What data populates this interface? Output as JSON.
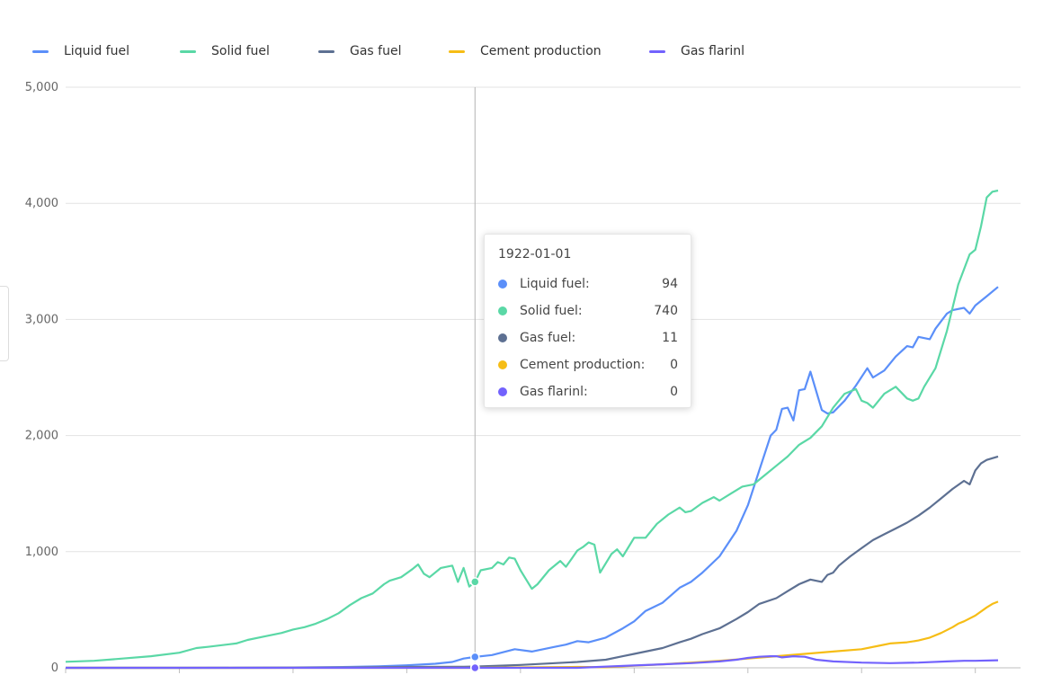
{
  "chart_data": {
    "type": "line",
    "title": "",
    "xlabel": "",
    "ylabel": "",
    "ylim": [
      0,
      5000
    ],
    "y_ticks": [
      0,
      1000,
      2000,
      3000,
      4000,
      5000
    ],
    "y_tick_labels": [
      "0",
      "1,000",
      "2,000",
      "3,000",
      "4,000",
      "5,000"
    ],
    "x_range": [
      1850,
      2014
    ],
    "grid": true,
    "legend_position": "top-left",
    "series": [
      {
        "name": "Liquid fuel",
        "color": "#5B8FF9",
        "points": [
          [
            1850,
            0
          ],
          [
            1870,
            0
          ],
          [
            1880,
            1
          ],
          [
            1890,
            3
          ],
          [
            1900,
            8
          ],
          [
            1905,
            12
          ],
          [
            1910,
            22
          ],
          [
            1915,
            35
          ],
          [
            1918,
            50
          ],
          [
            1920,
            80
          ],
          [
            1922,
            94
          ],
          [
            1925,
            110
          ],
          [
            1929,
            160
          ],
          [
            1932,
            140
          ],
          [
            1936,
            180
          ],
          [
            1938,
            200
          ],
          [
            1940,
            230
          ],
          [
            1942,
            220
          ],
          [
            1945,
            260
          ],
          [
            1948,
            340
          ],
          [
            1950,
            400
          ],
          [
            1952,
            490
          ],
          [
            1955,
            560
          ],
          [
            1958,
            690
          ],
          [
            1960,
            740
          ],
          [
            1962,
            820
          ],
          [
            1965,
            960
          ],
          [
            1968,
            1180
          ],
          [
            1970,
            1400
          ],
          [
            1972,
            1700
          ],
          [
            1974,
            2000
          ],
          [
            1975,
            2050
          ],
          [
            1976,
            2230
          ],
          [
            1977,
            2240
          ],
          [
            1978,
            2130
          ],
          [
            1979,
            2390
          ],
          [
            1980,
            2400
          ],
          [
            1981,
            2550
          ],
          [
            1983,
            2220
          ],
          [
            1984,
            2190
          ],
          [
            1985,
            2200
          ],
          [
            1987,
            2300
          ],
          [
            1989,
            2430
          ],
          [
            1991,
            2580
          ],
          [
            1992,
            2500
          ],
          [
            1994,
            2560
          ],
          [
            1996,
            2680
          ],
          [
            1998,
            2770
          ],
          [
            1999,
            2760
          ],
          [
            2000,
            2850
          ],
          [
            2002,
            2830
          ],
          [
            2003,
            2920
          ],
          [
            2005,
            3050
          ],
          [
            2006,
            3080
          ],
          [
            2008,
            3100
          ],
          [
            2009,
            3050
          ],
          [
            2010,
            3120
          ],
          [
            2012,
            3200
          ],
          [
            2014,
            3280
          ]
        ]
      },
      {
        "name": "Solid fuel",
        "color": "#5AD8A6",
        "points": [
          [
            1850,
            52
          ],
          [
            1855,
            60
          ],
          [
            1860,
            80
          ],
          [
            1865,
            100
          ],
          [
            1870,
            130
          ],
          [
            1873,
            170
          ],
          [
            1875,
            180
          ],
          [
            1880,
            210
          ],
          [
            1882,
            240
          ],
          [
            1885,
            270
          ],
          [
            1888,
            300
          ],
          [
            1890,
            330
          ],
          [
            1892,
            350
          ],
          [
            1894,
            380
          ],
          [
            1896,
            420
          ],
          [
            1898,
            470
          ],
          [
            1900,
            540
          ],
          [
            1902,
            600
          ],
          [
            1904,
            640
          ],
          [
            1906,
            720
          ],
          [
            1907,
            750
          ],
          [
            1909,
            780
          ],
          [
            1911,
            850
          ],
          [
            1912,
            890
          ],
          [
            1913,
            810
          ],
          [
            1914,
            780
          ],
          [
            1916,
            860
          ],
          [
            1918,
            880
          ],
          [
            1919,
            740
          ],
          [
            1920,
            860
          ],
          [
            1921,
            700
          ],
          [
            1922,
            740
          ],
          [
            1923,
            840
          ],
          [
            1925,
            860
          ],
          [
            1926,
            910
          ],
          [
            1927,
            890
          ],
          [
            1928,
            950
          ],
          [
            1929,
            940
          ],
          [
            1930,
            840
          ],
          [
            1931,
            760
          ],
          [
            1932,
            680
          ],
          [
            1933,
            720
          ],
          [
            1935,
            840
          ],
          [
            1937,
            920
          ],
          [
            1938,
            870
          ],
          [
            1939,
            940
          ],
          [
            1940,
            1010
          ],
          [
            1941,
            1040
          ],
          [
            1942,
            1080
          ],
          [
            1943,
            1060
          ],
          [
            1944,
            820
          ],
          [
            1946,
            980
          ],
          [
            1947,
            1020
          ],
          [
            1948,
            960
          ],
          [
            1950,
            1120
          ],
          [
            1952,
            1120
          ],
          [
            1954,
            1240
          ],
          [
            1956,
            1320
          ],
          [
            1958,
            1380
          ],
          [
            1959,
            1340
          ],
          [
            1960,
            1350
          ],
          [
            1962,
            1420
          ],
          [
            1964,
            1470
          ],
          [
            1965,
            1440
          ],
          [
            1967,
            1500
          ],
          [
            1969,
            1560
          ],
          [
            1971,
            1580
          ],
          [
            1973,
            1660
          ],
          [
            1975,
            1740
          ],
          [
            1977,
            1820
          ],
          [
            1979,
            1920
          ],
          [
            1981,
            1980
          ],
          [
            1983,
            2080
          ],
          [
            1985,
            2240
          ],
          [
            1987,
            2360
          ],
          [
            1989,
            2400
          ],
          [
            1990,
            2300
          ],
          [
            1991,
            2280
          ],
          [
            1992,
            2240
          ],
          [
            1994,
            2360
          ],
          [
            1996,
            2420
          ],
          [
            1998,
            2320
          ],
          [
            1999,
            2300
          ],
          [
            2000,
            2320
          ],
          [
            2001,
            2420
          ],
          [
            2003,
            2580
          ],
          [
            2005,
            2900
          ],
          [
            2007,
            3300
          ],
          [
            2009,
            3560
          ],
          [
            2010,
            3600
          ],
          [
            2011,
            3800
          ],
          [
            2012,
            4050
          ],
          [
            2013,
            4100
          ],
          [
            2014,
            4110
          ]
        ]
      },
      {
        "name": "Gas fuel",
        "color": "#5D7092",
        "points": [
          [
            1850,
            0
          ],
          [
            1880,
            0
          ],
          [
            1890,
            1
          ],
          [
            1900,
            3
          ],
          [
            1910,
            8
          ],
          [
            1920,
            9
          ],
          [
            1922,
            11
          ],
          [
            1930,
            25
          ],
          [
            1940,
            50
          ],
          [
            1945,
            70
          ],
          [
            1948,
            100
          ],
          [
            1950,
            120
          ],
          [
            1955,
            170
          ],
          [
            1958,
            220
          ],
          [
            1960,
            250
          ],
          [
            1962,
            290
          ],
          [
            1965,
            340
          ],
          [
            1968,
            420
          ],
          [
            1970,
            480
          ],
          [
            1972,
            550
          ],
          [
            1975,
            600
          ],
          [
            1977,
            660
          ],
          [
            1979,
            720
          ],
          [
            1981,
            760
          ],
          [
            1983,
            740
          ],
          [
            1984,
            800
          ],
          [
            1985,
            820
          ],
          [
            1986,
            880
          ],
          [
            1988,
            960
          ],
          [
            1990,
            1030
          ],
          [
            1992,
            1100
          ],
          [
            1994,
            1150
          ],
          [
            1996,
            1200
          ],
          [
            1998,
            1250
          ],
          [
            2000,
            1310
          ],
          [
            2002,
            1380
          ],
          [
            2004,
            1460
          ],
          [
            2006,
            1540
          ],
          [
            2008,
            1610
          ],
          [
            2009,
            1580
          ],
          [
            2010,
            1700
          ],
          [
            2011,
            1760
          ],
          [
            2012,
            1790
          ],
          [
            2014,
            1820
          ]
        ]
      },
      {
        "name": "Cement production",
        "color": "#F6BD16",
        "points": [
          [
            1850,
            0
          ],
          [
            1920,
            0
          ],
          [
            1922,
            0
          ],
          [
            1925,
            2
          ],
          [
            1930,
            4
          ],
          [
            1940,
            8
          ],
          [
            1945,
            5
          ],
          [
            1950,
            18
          ],
          [
            1955,
            30
          ],
          [
            1960,
            45
          ],
          [
            1965,
            60
          ],
          [
            1970,
            80
          ],
          [
            1975,
            100
          ],
          [
            1980,
            120
          ],
          [
            1985,
            140
          ],
          [
            1990,
            160
          ],
          [
            1993,
            190
          ],
          [
            1995,
            210
          ],
          [
            1998,
            220
          ],
          [
            2000,
            235
          ],
          [
            2002,
            260
          ],
          [
            2004,
            300
          ],
          [
            2006,
            350
          ],
          [
            2007,
            380
          ],
          [
            2008,
            400
          ],
          [
            2010,
            450
          ],
          [
            2012,
            520
          ],
          [
            2013,
            550
          ],
          [
            2014,
            570
          ]
        ]
      },
      {
        "name": "Gas flarinl",
        "color": "#7262FD",
        "points": [
          [
            1850,
            0
          ],
          [
            1920,
            0
          ],
          [
            1922,
            0
          ],
          [
            1930,
            0
          ],
          [
            1940,
            0
          ],
          [
            1950,
            20
          ],
          [
            1955,
            30
          ],
          [
            1960,
            40
          ],
          [
            1965,
            55
          ],
          [
            1968,
            70
          ],
          [
            1970,
            85
          ],
          [
            1972,
            95
          ],
          [
            1974,
            100
          ],
          [
            1975,
            100
          ],
          [
            1976,
            90
          ],
          [
            1978,
            100
          ],
          [
            1980,
            95
          ],
          [
            1982,
            70
          ],
          [
            1985,
            55
          ],
          [
            1990,
            45
          ],
          [
            1995,
            40
          ],
          [
            2000,
            45
          ],
          [
            2005,
            55
          ],
          [
            2008,
            60
          ],
          [
            2010,
            60
          ],
          [
            2014,
            65
          ]
        ]
      }
    ],
    "highlight": {
      "x": 1922,
      "label": "1922-01-01",
      "rows": [
        {
          "name": "Liquid fuel:",
          "value": "94",
          "color": "#5B8FF9"
        },
        {
          "name": "Solid fuel:",
          "value": "740",
          "color": "#5AD8A6"
        },
        {
          "name": "Gas fuel:",
          "value": "11",
          "color": "#5D7092"
        },
        {
          "name": "Cement production:",
          "value": "0",
          "color": "#F6BD16"
        },
        {
          "name": "Gas flarinl:",
          "value": "0",
          "color": "#7262FD"
        }
      ]
    }
  }
}
